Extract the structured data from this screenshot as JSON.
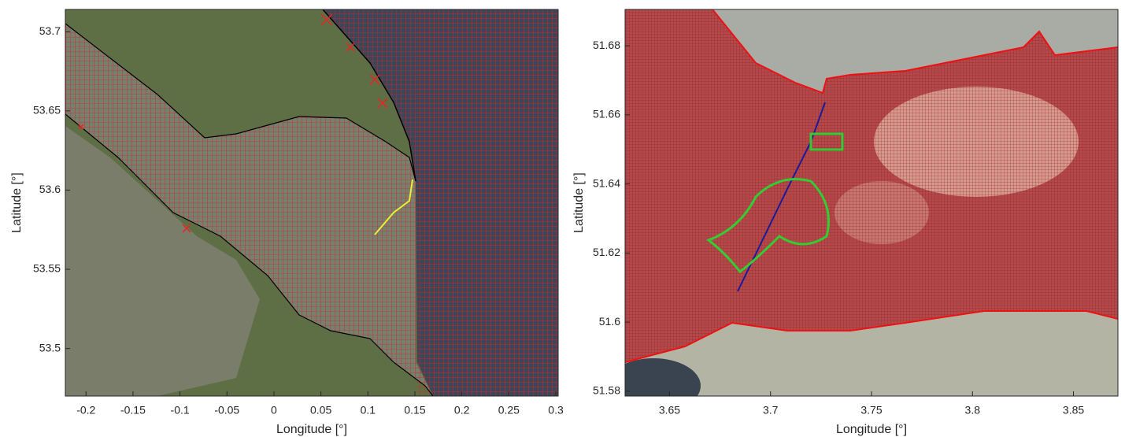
{
  "chart_data": [
    {
      "type": "map",
      "xlabel": "Longitude [°]",
      "ylabel": "Latitude [°]",
      "xlim": [
        -0.222,
        0.3025
      ],
      "ylim": [
        53.47,
        53.714
      ],
      "xticks": [
        -0.2,
        -0.15,
        -0.1,
        -0.05,
        0,
        0.05,
        0.1,
        0.15,
        0.2,
        0.25,
        0.3
      ],
      "yticks": [
        53.5,
        53.55,
        53.6,
        53.65,
        53.7
      ]
    },
    {
      "type": "map",
      "xlabel": "Longitude [°]",
      "ylabel": "Latitude [°]",
      "xlim": [
        3.628,
        3.872
      ],
      "ylim": [
        51.5786,
        51.6905
      ],
      "xticks": [
        3.65,
        3.7,
        3.75,
        3.8,
        3.85
      ],
      "yticks": [
        51.58,
        51.6,
        51.62,
        51.64,
        51.66,
        51.68
      ]
    }
  ]
}
